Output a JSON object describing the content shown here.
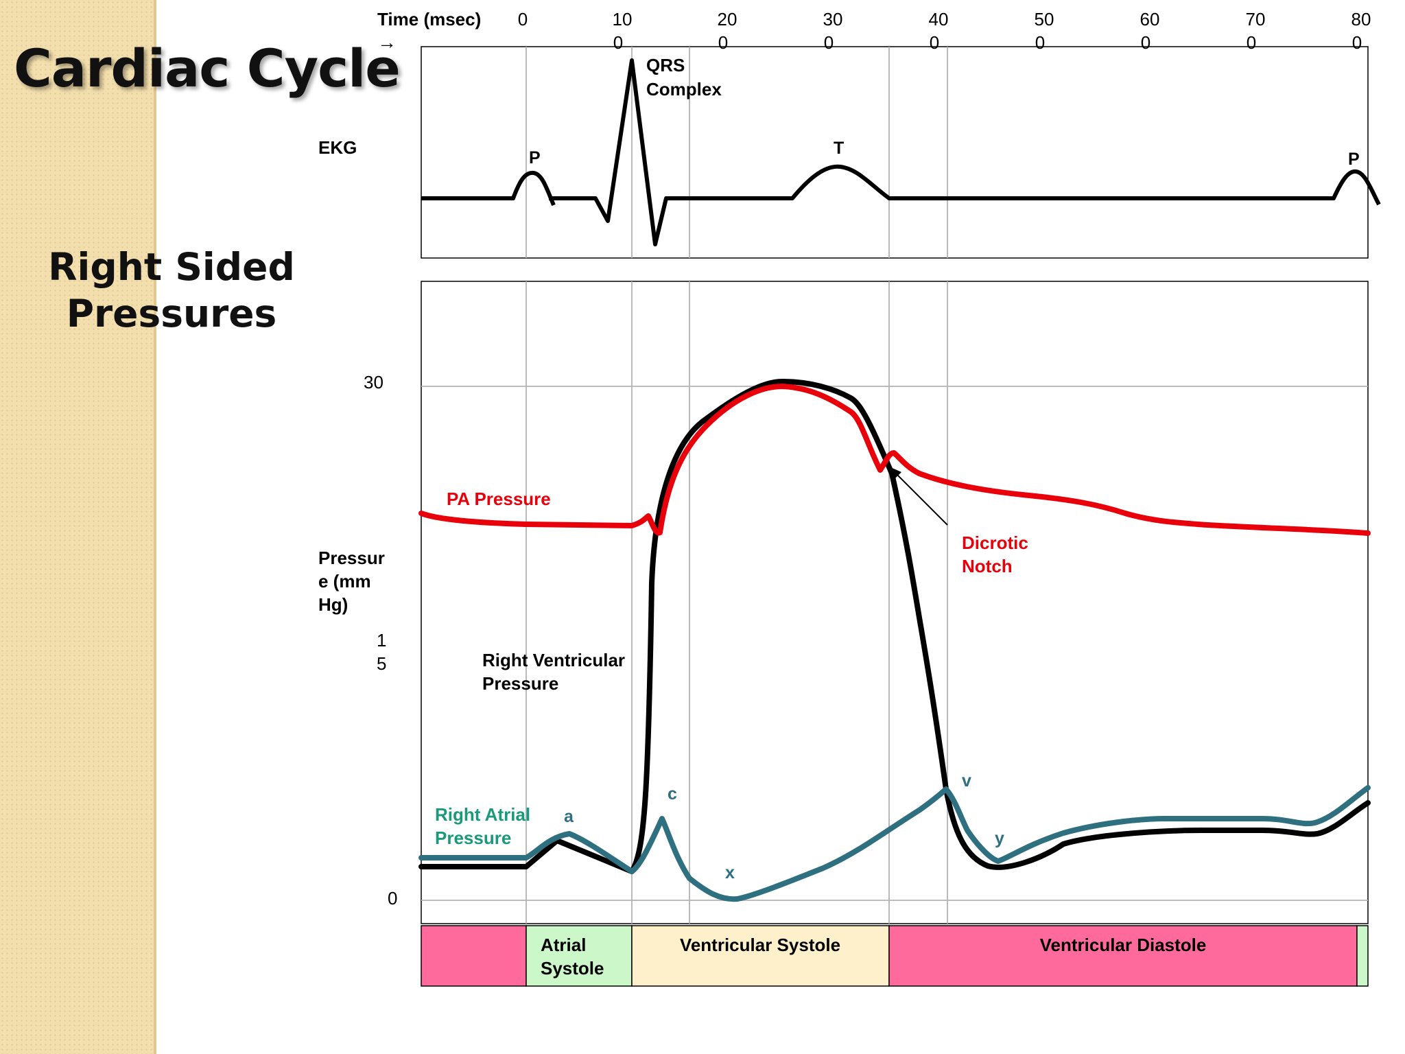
{
  "slide": {
    "title": "Cardiac Cycle",
    "subtitle_line1": "Right Sided",
    "subtitle_line2": "Pressures"
  },
  "axes": {
    "time_label": "Time (msec)",
    "time_arrow": "→",
    "time_ticks": [
      {
        "top": "0",
        "bottom": ""
      },
      {
        "top": "10",
        "bottom": "0"
      },
      {
        "top": "20",
        "bottom": "0"
      },
      {
        "top": "30",
        "bottom": "0"
      },
      {
        "top": "40",
        "bottom": "0"
      },
      {
        "top": "50",
        "bottom": "0"
      },
      {
        "top": "60",
        "bottom": "0"
      },
      {
        "top": "70",
        "bottom": "0"
      },
      {
        "top": "80",
        "bottom": "0"
      }
    ],
    "ekg_label": "EKG",
    "pressure_label_lines": [
      "Pressur",
      "e (mm",
      "Hg)"
    ],
    "pressure_tick_30": "30",
    "pressure_tick_15_lines": [
      "1",
      "5"
    ],
    "pressure_tick_0": "0"
  },
  "ekg": {
    "p_wave": "P",
    "qrs_line1": "QRS",
    "qrs_line2": "Complex",
    "t_wave": "T",
    "p_wave_2": "P"
  },
  "curves": {
    "pa_label": "PA Pressure",
    "rv_label_line1": "Right Ventricular",
    "rv_label_line2": "Pressure",
    "ra_label_line1": "Right Atrial",
    "ra_label_line2": "Pressure",
    "dicrotic_line1": "Dicrotic",
    "dicrotic_line2": "Notch",
    "wave_a": "a",
    "wave_c": "c",
    "wave_x": "x",
    "wave_v": "v",
    "wave_y": "y"
  },
  "phases": {
    "atrial_line1": "Atrial",
    "atrial_line2": "Systole",
    "ventricular_systole": "Ventricular Systole",
    "ventricular_diastole": "Ventricular Diastole"
  },
  "colors": {
    "pa": "#e8000b",
    "rv": "#000000",
    "ra": "#2e6f80",
    "ra_label": "#1a9a7a",
    "phase_pink": "#ff6a9c",
    "phase_green": "#ccf7c9",
    "phase_cream": "#fff0cc"
  }
}
